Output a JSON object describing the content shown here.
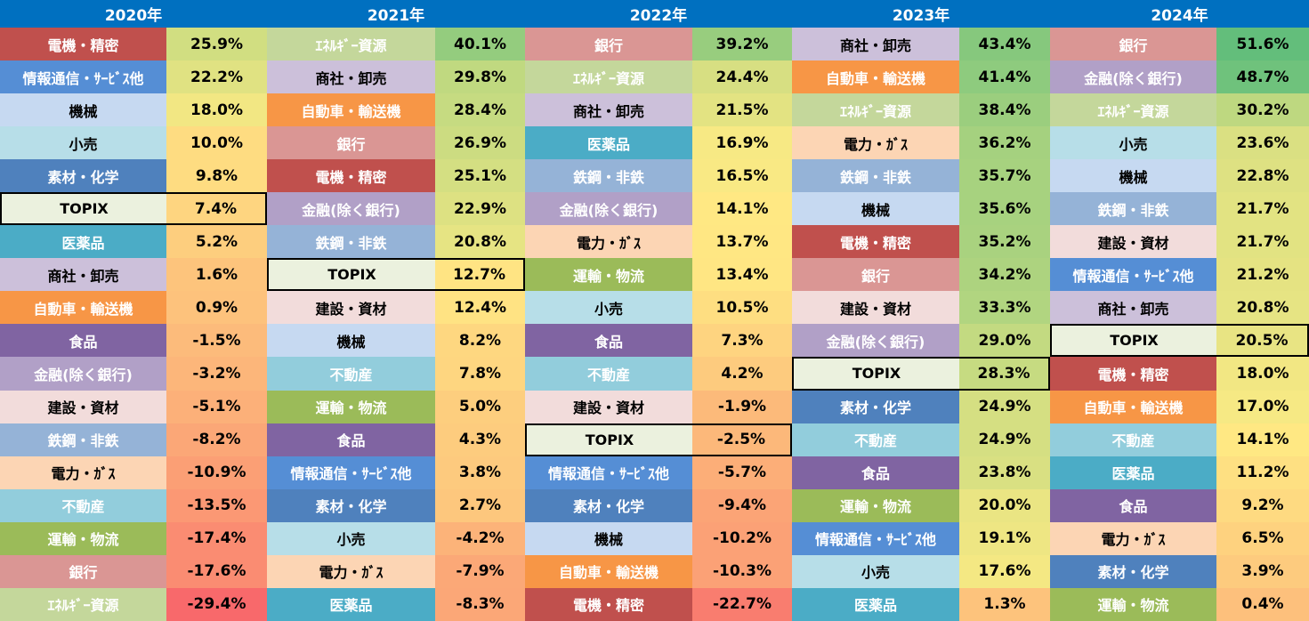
{
  "chart_data": {
    "type": "table",
    "unit": "%",
    "years": [
      "2020年",
      "2021年",
      "2022年",
      "2023年",
      "2024年"
    ],
    "sector_colors": {
      "電機・精密": {
        "bg": "#C0504D",
        "fg": "#FFFFFF"
      },
      "情報通信・ｻｰﾋﾞｽ他": {
        "bg": "#558ED5",
        "fg": "#FFFFFF"
      },
      "機械": {
        "bg": "#C6D9F1",
        "fg": "#000000"
      },
      "小売": {
        "bg": "#B7DEE8",
        "fg": "#000000"
      },
      "素材・化学": {
        "bg": "#4F81BD",
        "fg": "#FFFFFF"
      },
      "TOPIX": {
        "bg": "#EBF1DE",
        "fg": "#000000"
      },
      "医薬品": {
        "bg": "#4BACC6",
        "fg": "#FFFFFF"
      },
      "商社・卸売": {
        "bg": "#CCC0DA",
        "fg": "#000000"
      },
      "自動車・輸送機": {
        "bg": "#F79646",
        "fg": "#FFFFFF"
      },
      "食品": {
        "bg": "#8064A2",
        "fg": "#FFFFFF"
      },
      "金融(除く銀行)": {
        "bg": "#B1A0C7",
        "fg": "#FFFFFF"
      },
      "建設・資材": {
        "bg": "#F2DCDB",
        "fg": "#000000"
      },
      "鉄鋼・非鉄": {
        "bg": "#95B3D7",
        "fg": "#FFFFFF"
      },
      "電力・ｶﾞｽ": {
        "bg": "#FCD5B4",
        "fg": "#000000"
      },
      "不動産": {
        "bg": "#92CDDC",
        "fg": "#FFFFFF"
      },
      "運輸・物流": {
        "bg": "#9BBB59",
        "fg": "#FFFFFF"
      },
      "銀行": {
        "bg": "#DA9694",
        "fg": "#FFFFFF"
      },
      "ｴﾈﾙｷﾞｰ資源": {
        "bg": "#C4D79B",
        "fg": "#FFFFFF"
      }
    },
    "value_color_scale": {
      "low": "#F8696B",
      "mid": "#FFEB84",
      "high": "#63BE7B"
    },
    "highlight": "TOPIX",
    "columns": [
      {
        "year": "2020年",
        "rows": [
          [
            "電機・精密",
            25.9
          ],
          [
            "情報通信・ｻｰﾋﾞｽ他",
            22.2
          ],
          [
            "機械",
            18.0
          ],
          [
            "小売",
            10.0
          ],
          [
            "素材・化学",
            9.8
          ],
          [
            "TOPIX",
            7.4
          ],
          [
            "医薬品",
            5.2
          ],
          [
            "商社・卸売",
            1.6
          ],
          [
            "自動車・輸送機",
            0.9
          ],
          [
            "食品",
            -1.5
          ],
          [
            "金融(除く銀行)",
            -3.2
          ],
          [
            "建設・資材",
            -5.1
          ],
          [
            "鉄鋼・非鉄",
            -8.2
          ],
          [
            "電力・ｶﾞｽ",
            -10.9
          ],
          [
            "不動産",
            -13.5
          ],
          [
            "運輸・物流",
            -17.4
          ],
          [
            "銀行",
            -17.6
          ],
          [
            "ｴﾈﾙｷﾞｰ資源",
            -29.4
          ]
        ]
      },
      {
        "year": "2021年",
        "rows": [
          [
            "ｴﾈﾙｷﾞｰ資源",
            40.1
          ],
          [
            "商社・卸売",
            29.8
          ],
          [
            "自動車・輸送機",
            28.4
          ],
          [
            "銀行",
            26.9
          ],
          [
            "電機・精密",
            25.1
          ],
          [
            "金融(除く銀行)",
            22.9
          ],
          [
            "鉄鋼・非鉄",
            20.8
          ],
          [
            "TOPIX",
            12.7
          ],
          [
            "建設・資材",
            12.4
          ],
          [
            "機械",
            8.2
          ],
          [
            "不動産",
            7.8
          ],
          [
            "運輸・物流",
            5.0
          ],
          [
            "食品",
            4.3
          ],
          [
            "情報通信・ｻｰﾋﾞｽ他",
            3.8
          ],
          [
            "素材・化学",
            2.7
          ],
          [
            "小売",
            -4.2
          ],
          [
            "電力・ｶﾞｽ",
            -7.9
          ],
          [
            "医薬品",
            -8.3
          ]
        ]
      },
      {
        "year": "2022年",
        "rows": [
          [
            "銀行",
            39.2
          ],
          [
            "ｴﾈﾙｷﾞｰ資源",
            24.4
          ],
          [
            "商社・卸売",
            21.5
          ],
          [
            "医薬品",
            16.9
          ],
          [
            "鉄鋼・非鉄",
            16.5
          ],
          [
            "金融(除く銀行)",
            14.1
          ],
          [
            "電力・ｶﾞｽ",
            13.7
          ],
          [
            "運輸・物流",
            13.4
          ],
          [
            "小売",
            10.5
          ],
          [
            "食品",
            7.3
          ],
          [
            "不動産",
            4.2
          ],
          [
            "建設・資材",
            -1.9
          ],
          [
            "TOPIX",
            -2.5
          ],
          [
            "情報通信・ｻｰﾋﾞｽ他",
            -5.7
          ],
          [
            "素材・化学",
            -9.4
          ],
          [
            "機械",
            -10.2
          ],
          [
            "自動車・輸送機",
            -10.3
          ],
          [
            "電機・精密",
            -22.7
          ]
        ]
      },
      {
        "year": "2023年",
        "rows": [
          [
            "商社・卸売",
            43.4
          ],
          [
            "自動車・輸送機",
            41.4
          ],
          [
            "ｴﾈﾙｷﾞｰ資源",
            38.4
          ],
          [
            "電力・ｶﾞｽ",
            36.2
          ],
          [
            "鉄鋼・非鉄",
            35.7
          ],
          [
            "機械",
            35.6
          ],
          [
            "電機・精密",
            35.2
          ],
          [
            "銀行",
            34.2
          ],
          [
            "建設・資材",
            33.3
          ],
          [
            "金融(除く銀行)",
            29.0
          ],
          [
            "TOPIX",
            28.3
          ],
          [
            "素材・化学",
            24.9
          ],
          [
            "不動産",
            24.9
          ],
          [
            "食品",
            23.8
          ],
          [
            "運輸・物流",
            20.0
          ],
          [
            "情報通信・ｻｰﾋﾞｽ他",
            19.1
          ],
          [
            "小売",
            17.6
          ],
          [
            "医薬品",
            1.3
          ]
        ]
      },
      {
        "year": "2024年",
        "rows": [
          [
            "銀行",
            51.6
          ],
          [
            "金融(除く銀行)",
            48.7
          ],
          [
            "ｴﾈﾙｷﾞｰ資源",
            30.2
          ],
          [
            "小売",
            23.6
          ],
          [
            "機械",
            22.8
          ],
          [
            "鉄鋼・非鉄",
            21.7
          ],
          [
            "建設・資材",
            21.7
          ],
          [
            "情報通信・ｻｰﾋﾞｽ他",
            21.2
          ],
          [
            "商社・卸売",
            20.8
          ],
          [
            "TOPIX",
            20.5
          ],
          [
            "電機・精密",
            18.0
          ],
          [
            "自動車・輸送機",
            17.0
          ],
          [
            "不動産",
            14.1
          ],
          [
            "医薬品",
            11.2
          ],
          [
            "食品",
            9.2
          ],
          [
            "電力・ｶﾞｽ",
            6.5
          ],
          [
            "素材・化学",
            3.9
          ],
          [
            "運輸・物流",
            0.4
          ]
        ]
      }
    ]
  }
}
